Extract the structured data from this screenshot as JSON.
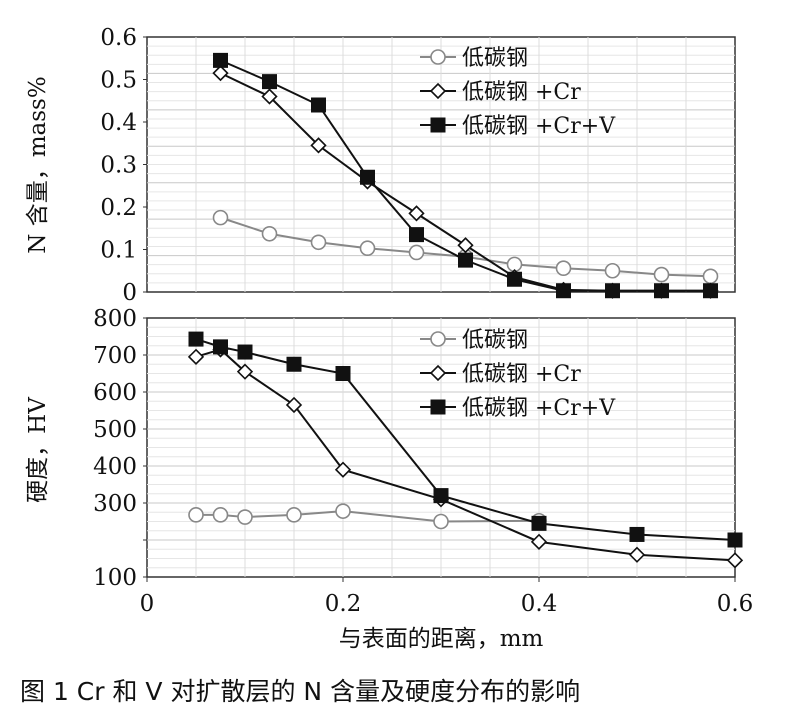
{
  "figure_caption": "图 1   Cr 和 V 对扩散层的 N 含量及硬度分布的影响",
  "shared_xlabel": "与表面的距离，mm",
  "chart_data": [
    {
      "type": "line",
      "id": "nitrogen",
      "title": "",
      "ylabel": "N 含量，mass%",
      "xlabel": "",
      "xlim": [
        0,
        0.6
      ],
      "ylim": [
        0,
        0.6
      ],
      "yticks": [
        0,
        0.1,
        0.2,
        0.3,
        0.4,
        0.5,
        0.6
      ],
      "yticklabels": [
        "0",
        "0.1",
        "0.2",
        "0.3",
        "0.4",
        "0.5",
        "0.6"
      ],
      "xticks": [],
      "grid": true,
      "legend_position": "top-right",
      "series": [
        {
          "name": "低碳钢",
          "marker": "circle",
          "x": [
            0.075,
            0.125,
            0.175,
            0.225,
            0.275,
            0.325,
            0.375,
            0.425,
            0.475,
            0.525,
            0.575
          ],
          "y": [
            0.175,
            0.137,
            0.117,
            0.103,
            0.093,
            0.083,
            0.065,
            0.056,
            0.05,
            0.041,
            0.037
          ]
        },
        {
          "name": "低碳钢 +Cr",
          "marker": "diamond",
          "x": [
            0.075,
            0.125,
            0.175,
            0.225,
            0.275,
            0.325,
            0.375,
            0.425,
            0.475,
            0.525,
            0.575
          ],
          "y": [
            0.515,
            0.46,
            0.345,
            0.26,
            0.185,
            0.11,
            0.035,
            0.005,
            0.003,
            0.003,
            0.003
          ]
        },
        {
          "name": "低碳钢 +Cr+V",
          "marker": "square",
          "x": [
            0.075,
            0.125,
            0.175,
            0.225,
            0.275,
            0.325,
            0.375,
            0.425,
            0.475,
            0.525,
            0.575
          ],
          "y": [
            0.545,
            0.495,
            0.44,
            0.27,
            0.135,
            0.075,
            0.03,
            0.003,
            0.003,
            0.003,
            0.003
          ]
        }
      ]
    },
    {
      "type": "line",
      "id": "hardness",
      "title": "",
      "ylabel": "硬度，HV",
      "xlabel": "与表面的距离，mm",
      "xlim": [
        0,
        0.6
      ],
      "ylim": [
        100,
        800
      ],
      "yticks": [
        100,
        200,
        300,
        400,
        500,
        600,
        700,
        800
      ],
      "yticklabels": [
        "100",
        "",
        "300",
        "400",
        "500",
        "600",
        "700",
        "800"
      ],
      "xticks": [
        0,
        0.2,
        0.4,
        0.6
      ],
      "xticklabels": [
        "0",
        "0.2",
        "0.4",
        "0.6"
      ],
      "grid": true,
      "legend_position": "top-right",
      "series": [
        {
          "name": "低碳钢",
          "marker": "circle",
          "x": [
            0.05,
            0.075,
            0.1,
            0.15,
            0.2,
            0.3,
            0.4
          ],
          "y": [
            268,
            268,
            262,
            268,
            278,
            250,
            252
          ]
        },
        {
          "name": "低碳钢 +Cr",
          "marker": "diamond",
          "x": [
            0.05,
            0.075,
            0.1,
            0.15,
            0.2,
            0.3,
            0.4,
            0.5,
            0.6
          ],
          "y": [
            695,
            715,
            655,
            565,
            390,
            310,
            195,
            160,
            145
          ]
        },
        {
          "name": "低碳钢 +Cr+V",
          "marker": "square",
          "x": [
            0.05,
            0.075,
            0.1,
            0.15,
            0.2,
            0.3,
            0.4,
            0.5,
            0.6
          ],
          "y": [
            743,
            722,
            708,
            675,
            650,
            320,
            245,
            215,
            200
          ]
        }
      ]
    }
  ]
}
